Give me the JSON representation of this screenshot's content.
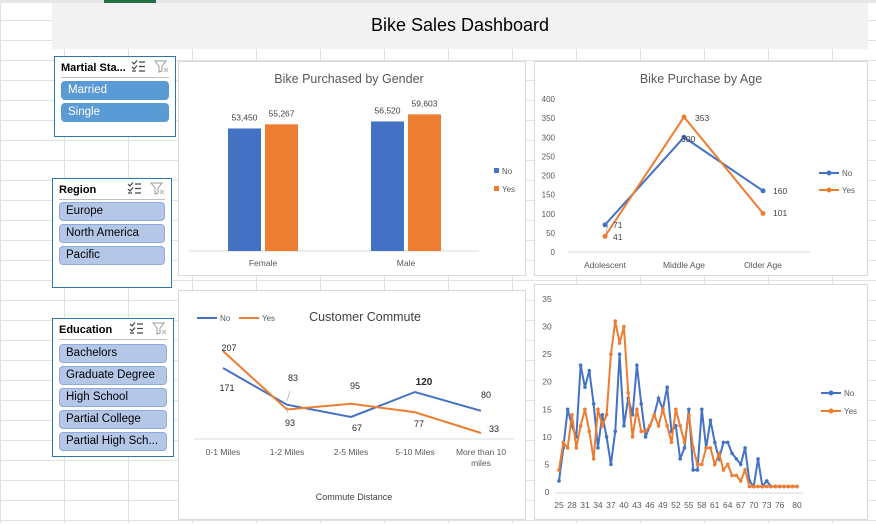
{
  "dashboard": {
    "title": "Bike Sales Dashboard"
  },
  "slicers": {
    "marital": {
      "title": "Martial Sta...",
      "items": [
        "Married",
        "Single"
      ]
    },
    "region": {
      "title": "Region",
      "items": [
        "Europe",
        "North America",
        "Pacific"
      ]
    },
    "education": {
      "title": "Education",
      "items": [
        "Bachelors",
        "Graduate Degree",
        "High School",
        "Partial College",
        "Partial High Sch..."
      ]
    }
  },
  "colors": {
    "no": "#4472c4",
    "yes": "#ed7d31",
    "selected_chip": "#5b9bd5",
    "unselected_chip": "#b4c7e7"
  },
  "chart_data": [
    {
      "type": "bar",
      "title": "Bike Purchased by Gender",
      "categories": [
        "Female",
        "Male"
      ],
      "series": [
        {
          "name": "No",
          "values": [
            53450,
            56520
          ],
          "labels": [
            "53,450",
            "56,520"
          ]
        },
        {
          "name": "Yes",
          "values": [
            55267,
            59603
          ],
          "labels": [
            "55,267",
            "59,603"
          ]
        }
      ],
      "ylim": [
        0,
        65000
      ],
      "legend": "right"
    },
    {
      "type": "line",
      "title": "Bike Purchase by Age",
      "categories": [
        "Adolescent",
        "Middle Age",
        "Older Age"
      ],
      "series": [
        {
          "name": "No",
          "values": [
            71,
            300,
            160
          ]
        },
        {
          "name": "Yes",
          "values": [
            41,
            353,
            101
          ]
        }
      ],
      "yticks": [
        "0",
        "50",
        "100",
        "150",
        "200",
        "250",
        "300",
        "350",
        "400"
      ],
      "ylim": [
        0,
        400
      ],
      "legend": "right"
    },
    {
      "type": "line",
      "title": "Customer Commute",
      "xlabel": "Commute Distance",
      "categories": [
        "0-1 Miles",
        "1-2 Miles",
        "2-5 Miles",
        "5-10 Miles",
        "More than 10 miles"
      ],
      "series": [
        {
          "name": "No",
          "values": [
            171,
            93,
            67,
            120,
            80
          ]
        },
        {
          "name": "Yes",
          "values": [
            207,
            83,
            95,
            77,
            33
          ]
        }
      ],
      "legend": "top-left"
    },
    {
      "type": "line",
      "x": [
        25,
        26,
        27,
        28,
        29,
        30,
        31,
        32,
        33,
        34,
        35,
        36,
        37,
        38,
        39,
        40,
        41,
        42,
        43,
        44,
        45,
        46,
        47,
        48,
        49,
        50,
        51,
        52,
        53,
        54,
        55,
        56,
        57,
        58,
        59,
        60,
        61,
        62,
        63,
        64,
        65,
        66,
        67,
        68,
        69,
        70,
        71,
        72,
        73,
        74,
        75,
        76,
        77,
        78,
        79,
        80
      ],
      "xticks": [
        "25",
        "28",
        "31",
        "34",
        "37",
        "40",
        "43",
        "46",
        "49",
        "52",
        "55",
        "58",
        "61",
        "64",
        "67",
        "70",
        "73",
        "76",
        "80"
      ],
      "yticks": [
        "0",
        "5",
        "10",
        "15",
        "20",
        "25",
        "30",
        "35"
      ],
      "ylim": [
        0,
        35
      ],
      "series": [
        {
          "name": "No",
          "values": [
            2,
            8,
            15,
            12,
            10,
            23,
            19,
            22,
            16,
            8,
            14,
            10,
            5,
            11,
            25,
            12,
            17,
            14,
            23,
            16,
            10,
            12,
            14,
            17,
            15,
            19,
            11,
            12,
            6,
            8,
            15,
            4,
            4,
            15,
            8,
            13,
            9,
            6,
            9,
            9,
            7,
            6,
            5,
            8,
            2,
            1,
            6,
            1,
            2,
            1,
            1,
            1,
            1,
            1,
            1,
            1
          ]
        },
        {
          "name": "Yes",
          "values": [
            4,
            9,
            8,
            14,
            8,
            12,
            15,
            11,
            6,
            15,
            12,
            14,
            25,
            31,
            27,
            30,
            18,
            10,
            15,
            11,
            11,
            12,
            14,
            12,
            15,
            12,
            9,
            15,
            12,
            9,
            14,
            8,
            5,
            5,
            8,
            8,
            5,
            7,
            4,
            5,
            3,
            3,
            2,
            4,
            1,
            1,
            1,
            1,
            1,
            1,
            1,
            1,
            1,
            1,
            1,
            1
          ]
        }
      ],
      "legend": "right"
    }
  ]
}
